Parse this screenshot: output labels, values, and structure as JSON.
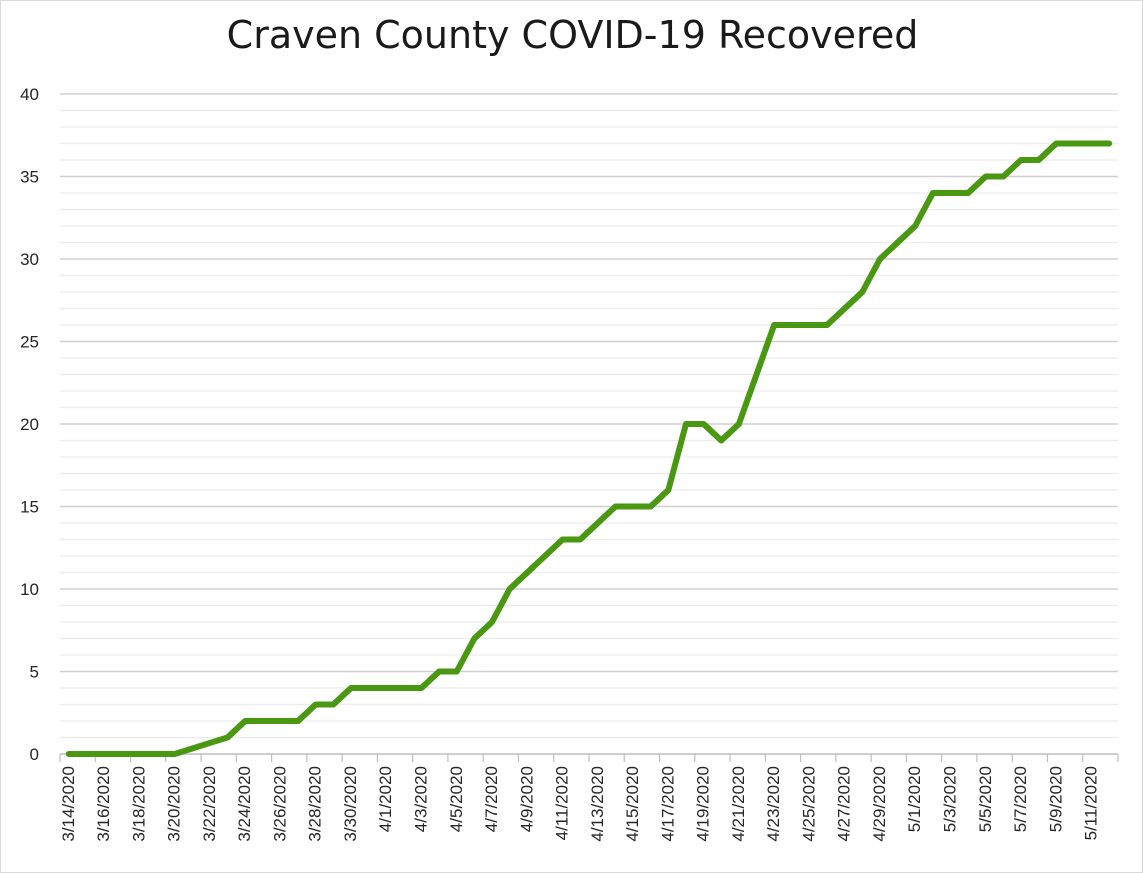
{
  "chart_data": {
    "type": "line",
    "title": "Craven County COVID-19 Recovered",
    "xlabel": "",
    "ylabel": "",
    "ylim": [
      0,
      40
    ],
    "y_ticks": [
      0,
      5,
      10,
      15,
      20,
      25,
      30,
      35,
      40
    ],
    "minor_gridline_step": 1,
    "x_tick_labels": [
      "3/14/2020",
      "3/16/2020",
      "3/18/2020",
      "3/20/2020",
      "3/22/2020",
      "3/24/2020",
      "3/26/2020",
      "3/28/2020",
      "3/30/2020",
      "4/1/2020",
      "4/3/2020",
      "4/5/2020",
      "4/7/2020",
      "4/9/2020",
      "4/11/2020",
      "4/13/2020",
      "4/15/2020",
      "4/17/2020",
      "4/19/2020",
      "4/21/2020",
      "4/23/2020",
      "4/25/2020",
      "4/27/2020",
      "4/29/2020",
      "5/1/2020",
      "5/3/2020",
      "5/5/2020",
      "5/7/2020",
      "5/9/2020",
      "5/11/2020"
    ],
    "x": [
      "3/14/2020",
      "3/15/2020",
      "3/16/2020",
      "3/17/2020",
      "3/18/2020",
      "3/19/2020",
      "3/20/2020",
      "3/21/2020",
      "3/22/2020",
      "3/23/2020",
      "3/24/2020",
      "3/25/2020",
      "3/26/2020",
      "3/27/2020",
      "3/28/2020",
      "3/29/2020",
      "3/30/2020",
      "3/31/2020",
      "4/1/2020",
      "4/2/2020",
      "4/3/2020",
      "4/4/2020",
      "4/5/2020",
      "4/6/2020",
      "4/7/2020",
      "4/8/2020",
      "4/9/2020",
      "4/10/2020",
      "4/11/2020",
      "4/12/2020",
      "4/13/2020",
      "4/14/2020",
      "4/15/2020",
      "4/16/2020",
      "4/17/2020",
      "4/18/2020",
      "4/19/2020",
      "4/20/2020",
      "4/21/2020",
      "4/22/2020",
      "4/23/2020",
      "4/24/2020",
      "4/25/2020",
      "4/26/2020",
      "4/27/2020",
      "4/28/2020",
      "4/29/2020",
      "4/30/2020",
      "5/1/2020",
      "5/2/2020",
      "5/3/2020",
      "5/4/2020",
      "5/5/2020",
      "5/6/2020",
      "5/7/2020",
      "5/8/2020",
      "5/9/2020",
      "5/10/2020",
      "5/11/2020",
      "5/12/2020"
    ],
    "series": [
      {
        "color": "#4a9711",
        "values": [
          0,
          0,
          0,
          0,
          0,
          0,
          0,
          0.33,
          0.67,
          1,
          2,
          2,
          2,
          2,
          3,
          3,
          4,
          4,
          4,
          4,
          4,
          5,
          5,
          7,
          8,
          10,
          11,
          12,
          13,
          13,
          14,
          15,
          15,
          15,
          16,
          20,
          20,
          19,
          20,
          23,
          26,
          26,
          26,
          26,
          27,
          28,
          30,
          31,
          32,
          34,
          34,
          34,
          35,
          35,
          36,
          36,
          37,
          37,
          37,
          37
        ]
      }
    ],
    "grid": true,
    "legend": "none"
  }
}
